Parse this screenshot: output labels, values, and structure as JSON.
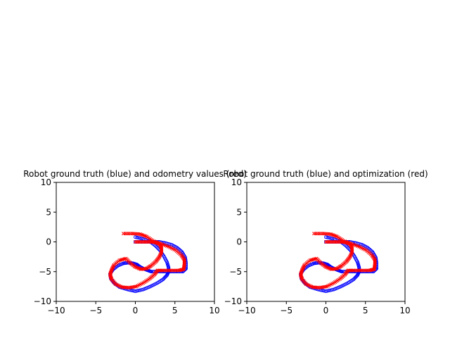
{
  "chart_data": [
    {
      "type": "scatter",
      "title": "Robot ground truth (blue) and odometry values (red)",
      "xlim": [
        -10,
        10
      ],
      "ylim": [
        -10,
        10
      ],
      "xticks": [
        -10,
        -5,
        0,
        5,
        10
      ],
      "yticks": [
        -10,
        -5,
        0,
        5,
        10
      ],
      "xtick_labels": [
        "−10",
        "−5",
        "0",
        "5",
        "10"
      ],
      "ytick_labels": [
        "−10",
        "−5",
        "0",
        "5",
        "10"
      ],
      "grid": false,
      "series": [
        {
          "color": "#0000ff",
          "marker": "circle",
          "points": [
            [
              0,
              0
            ],
            [
              1,
              0
            ],
            [
              2,
              0
            ],
            [
              3,
              0
            ],
            [
              3.8,
              -0.2
            ],
            [
              4.6,
              -0.5
            ],
            [
              5.3,
              -1.0
            ],
            [
              5.9,
              -1.7
            ],
            [
              6.3,
              -2.6
            ],
            [
              6.4,
              -3.5
            ],
            [
              6.4,
              -4.5
            ],
            [
              6.0,
              -5.0
            ],
            [
              5,
              -5
            ],
            [
              4,
              -5
            ],
            [
              3,
              -5
            ],
            [
              2,
              -5
            ],
            [
              1.6,
              -4.8
            ],
            [
              1.2,
              -4.6
            ],
            [
              0.6,
              -4.2
            ],
            [
              0.2,
              -3.8
            ],
            [
              -0.3,
              -3.6
            ],
            [
              -0.9,
              -3.5
            ],
            [
              -1.5,
              -3.6
            ],
            [
              -2.2,
              -4.0
            ],
            [
              -2.8,
              -4.6
            ],
            [
              -3.2,
              -5.4
            ],
            [
              -3.1,
              -6.2
            ],
            [
              -2.7,
              -6.9
            ],
            [
              -2.0,
              -7.6
            ],
            [
              -1.0,
              -8.0
            ],
            [
              0,
              -8.3
            ],
            [
              1,
              -8.0
            ],
            [
              1.9,
              -7.5
            ],
            [
              2.8,
              -6.9
            ],
            [
              3.5,
              -6.3
            ],
            [
              4.0,
              -5.6
            ],
            [
              4.2,
              -5.0
            ],
            [
              4.2,
              -4.3
            ],
            [
              4.0,
              -3.4
            ],
            [
              3.6,
              -2.4
            ],
            [
              3.1,
              -1.4
            ],
            [
              2.5,
              -0.6
            ],
            [
              1.8,
              0.1
            ],
            [
              1.0,
              0.5
            ],
            [
              0,
              0.8
            ]
          ]
        },
        {
          "color": "#ff0000",
          "marker": "x",
          "points": [
            [
              0,
              0
            ],
            [
              1,
              0
            ],
            [
              2,
              0
            ],
            [
              2.6,
              -0.1
            ],
            [
              3.1,
              -0.4
            ],
            [
              3.3,
              -1.0
            ],
            [
              3.3,
              -1.8
            ],
            [
              3.0,
              -2.6
            ],
            [
              2.6,
              -3.3
            ],
            [
              2.0,
              -4.0
            ],
            [
              1.4,
              -4.5
            ],
            [
              0.7,
              -4.6
            ],
            [
              0,
              -4.2
            ],
            [
              -0.6,
              -3.6
            ],
            [
              -1.2,
              -2.8
            ],
            [
              -2.0,
              -3.1
            ],
            [
              -2.7,
              -3.9
            ],
            [
              -3.0,
              -4.7
            ],
            [
              -3.2,
              -5.5
            ],
            [
              -3.0,
              -6.3
            ],
            [
              -2.5,
              -7.1
            ],
            [
              -1.7,
              -7.6
            ],
            [
              -0.8,
              -7.7
            ],
            [
              0.1,
              -7.5
            ],
            [
              1.0,
              -6.9
            ],
            [
              1.8,
              -6.2
            ],
            [
              2.4,
              -5.5
            ],
            [
              2.8,
              -4.8
            ],
            [
              3.5,
              -4.8
            ],
            [
              4.5,
              -4.8
            ],
            [
              5.5,
              -4.8
            ],
            [
              6.1,
              -4.6
            ],
            [
              6.2,
              -3.8
            ],
            [
              6.2,
              -3.0
            ],
            [
              5.8,
              -2.2
            ],
            [
              5.1,
              -1.4
            ],
            [
              4.2,
              -0.8
            ],
            [
              3.2,
              -0.3
            ],
            [
              2.2,
              0.2
            ],
            [
              1.4,
              0.9
            ],
            [
              0.6,
              1.3
            ],
            [
              -0.4,
              1.4
            ],
            [
              -1.5,
              1.4
            ]
          ]
        }
      ]
    },
    {
      "type": "scatter",
      "title": "Robot ground truth (blue) and optimization (red)",
      "xlim": [
        -10,
        10
      ],
      "ylim": [
        -10,
        10
      ],
      "xticks": [
        -10,
        -5,
        0,
        5,
        10
      ],
      "yticks": [
        -10,
        -5,
        0,
        5,
        10
      ],
      "xtick_labels": [
        "−10",
        "−5",
        "0",
        "5",
        "10"
      ],
      "ytick_labels": [
        "−10",
        "−5",
        "0",
        "5",
        "10"
      ],
      "grid": false,
      "series": [
        {
          "color": "#0000ff",
          "marker": "circle",
          "points": [
            [
              0,
              0
            ],
            [
              1,
              0
            ],
            [
              2,
              0
            ],
            [
              3,
              0
            ],
            [
              3.8,
              -0.2
            ],
            [
              4.6,
              -0.5
            ],
            [
              5.3,
              -1.0
            ],
            [
              5.9,
              -1.7
            ],
            [
              6.3,
              -2.6
            ],
            [
              6.4,
              -3.5
            ],
            [
              6.4,
              -4.5
            ],
            [
              6.0,
              -5.0
            ],
            [
              5,
              -5
            ],
            [
              4,
              -5
            ],
            [
              3,
              -5
            ],
            [
              2,
              -5
            ],
            [
              1.6,
              -4.8
            ],
            [
              1.2,
              -4.6
            ],
            [
              0.6,
              -4.2
            ],
            [
              0.2,
              -3.8
            ],
            [
              -0.3,
              -3.6
            ],
            [
              -0.9,
              -3.5
            ],
            [
              -1.5,
              -3.6
            ],
            [
              -2.2,
              -4.0
            ],
            [
              -2.8,
              -4.6
            ],
            [
              -3.2,
              -5.4
            ],
            [
              -3.1,
              -6.2
            ],
            [
              -2.7,
              -6.9
            ],
            [
              -2.0,
              -7.6
            ],
            [
              -1.0,
              -8.0
            ],
            [
              0,
              -8.3
            ],
            [
              1,
              -8.0
            ],
            [
              1.9,
              -7.5
            ],
            [
              2.8,
              -6.9
            ],
            [
              3.5,
              -6.3
            ],
            [
              4.0,
              -5.6
            ],
            [
              4.2,
              -5.0
            ],
            [
              4.2,
              -4.3
            ],
            [
              4.0,
              -3.4
            ],
            [
              3.6,
              -2.4
            ],
            [
              3.1,
              -1.4
            ],
            [
              2.5,
              -0.6
            ],
            [
              1.8,
              0.1
            ],
            [
              1.0,
              0.5
            ],
            [
              0,
              0.8
            ]
          ]
        },
        {
          "color": "#ff0000",
          "marker": "x",
          "points": [
            [
              0,
              0
            ],
            [
              1,
              0
            ],
            [
              2,
              0
            ],
            [
              2.6,
              -0.1
            ],
            [
              3.1,
              -0.4
            ],
            [
              3.3,
              -1.0
            ],
            [
              3.3,
              -1.8
            ],
            [
              3.0,
              -2.6
            ],
            [
              2.6,
              -3.3
            ],
            [
              2.0,
              -4.0
            ],
            [
              1.4,
              -4.5
            ],
            [
              0.7,
              -4.6
            ],
            [
              0,
              -4.2
            ],
            [
              -0.6,
              -3.6
            ],
            [
              -1.2,
              -2.8
            ],
            [
              -2.0,
              -3.1
            ],
            [
              -2.7,
              -3.9
            ],
            [
              -3.0,
              -4.7
            ],
            [
              -3.2,
              -5.5
            ],
            [
              -3.0,
              -6.3
            ],
            [
              -2.5,
              -7.1
            ],
            [
              -1.7,
              -7.6
            ],
            [
              -0.8,
              -7.7
            ],
            [
              0.1,
              -7.5
            ],
            [
              1.0,
              -6.9
            ],
            [
              1.8,
              -6.2
            ],
            [
              2.4,
              -5.5
            ],
            [
              2.8,
              -4.8
            ],
            [
              3.5,
              -4.8
            ],
            [
              4.5,
              -4.8
            ],
            [
              5.5,
              -4.8
            ],
            [
              6.1,
              -4.6
            ],
            [
              6.2,
              -3.8
            ],
            [
              6.2,
              -3.0
            ],
            [
              5.8,
              -2.2
            ],
            [
              5.1,
              -1.4
            ],
            [
              4.2,
              -0.8
            ],
            [
              3.2,
              -0.3
            ],
            [
              2.2,
              0.2
            ],
            [
              1.4,
              0.9
            ],
            [
              0.6,
              1.3
            ],
            [
              -0.4,
              1.4
            ],
            [
              -1.5,
              1.4
            ]
          ]
        }
      ]
    }
  ]
}
